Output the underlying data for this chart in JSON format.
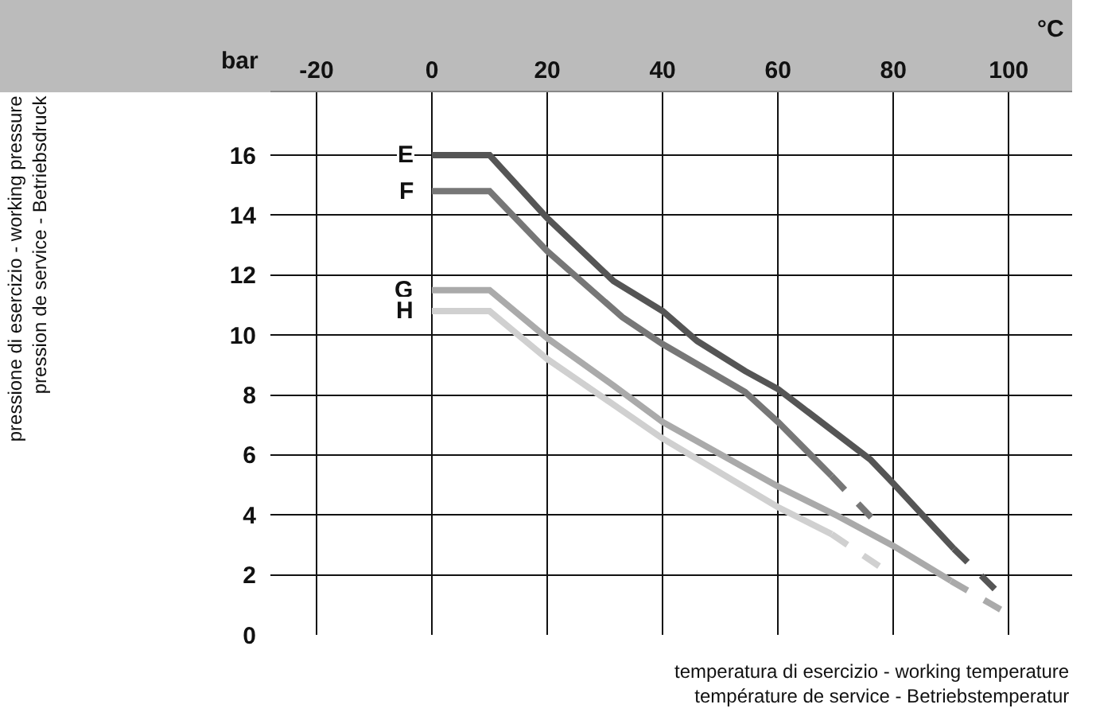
{
  "chart_data": {
    "type": "line",
    "xlabel": "temperatura di esercizio - working temperature\ntempérature de service - Betriebstemperatur",
    "annotations": [
      "bar",
      "°C",
      "pressione di esercizio - working pressure\npression de service - Betriebsdruck"
    ],
    "xlim": [
      -28,
      111
    ],
    "ylim": [
      0,
      18.1
    ],
    "xticks": [
      -20,
      0,
      20,
      40,
      60,
      80,
      100
    ],
    "yticks": [
      0,
      2,
      4,
      6,
      8,
      10,
      12,
      14,
      16
    ],
    "grid": true,
    "legend": false,
    "series": [
      {
        "name": "E",
        "color": "#555555",
        "line_style": "solid",
        "x": [
          0,
          10,
          20,
          31.5,
          40,
          46,
          54.3,
          60,
          76,
          80,
          90.5
        ],
        "values": [
          16,
          16,
          13.9,
          11.8,
          10.8,
          9.8,
          8.8,
          8.2,
          5.85,
          5.05,
          2.87
        ]
      },
      {
        "color": "#555555",
        "line_style": "dashed",
        "x": [
          90.5,
          98.8
        ],
        "values": [
          2.87,
          1.3
        ]
      },
      {
        "name": "F",
        "color": "#777777",
        "line_style": "solid",
        "x": [
          0,
          10,
          20,
          33,
          40,
          54.3,
          60,
          69.3
        ],
        "values": [
          14.8,
          14.8,
          12.8,
          10.6,
          9.7,
          8.1,
          7.1,
          5.3
        ]
      },
      {
        "color": "#777777",
        "line_style": "dashed",
        "x": [
          69.3,
          76.5
        ],
        "values": [
          5.3,
          3.85
        ]
      },
      {
        "name": "G",
        "color": "#aaaaaa",
        "line_style": "solid",
        "x": [
          0,
          10,
          20,
          31.6,
          40,
          60,
          70.4,
          80,
          90
        ],
        "values": [
          11.5,
          11.5,
          9.9,
          8.3,
          7.1,
          4.95,
          3.96,
          2.97,
          1.8
        ]
      },
      {
        "color": "#aaaaaa",
        "line_style": "dashed",
        "x": [
          90,
          99.9
        ],
        "values": [
          1.8,
          0.7
        ]
      },
      {
        "name": "H",
        "color": "#d0d0d0",
        "line_style": "solid",
        "x": [
          0,
          10,
          20,
          25.3,
          40,
          60,
          69.3
        ],
        "values": [
          10.8,
          10.8,
          9.2,
          8.5,
          6.55,
          4.26,
          3.36
        ]
      },
      {
        "color": "#d0d0d0",
        "line_style": "dashed",
        "x": [
          69.3,
          80
        ],
        "values": [
          3.36,
          1.97
        ]
      }
    ]
  }
}
